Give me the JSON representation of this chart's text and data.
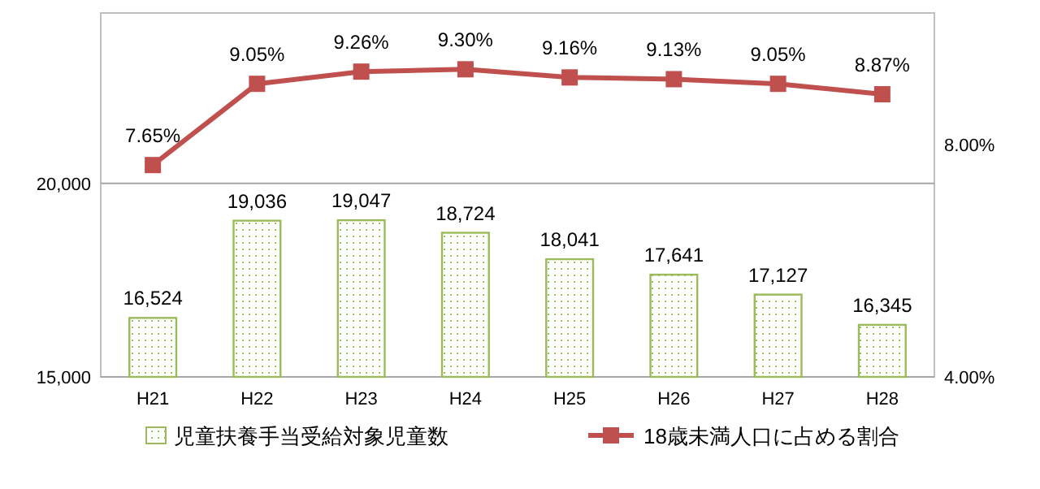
{
  "chart_data": {
    "type": "bar",
    "categories": [
      "H21",
      "H22",
      "H23",
      "H24",
      "H25",
      "H26",
      "H27",
      "H28"
    ],
    "series": [
      {
        "name": "児童扶養手当受給対象児童数",
        "color": "#9bbb59",
        "values": [
          16524,
          19036,
          19047,
          18724,
          18041,
          17641,
          17127,
          16345
        ],
        "value_labels": [
          "16,524",
          "19,036",
          "19,047",
          "18,724",
          "18,041",
          "17,641",
          "17,127",
          "16,345"
        ]
      },
      {
        "name": "18歳未満人口に占める割合",
        "type": "line",
        "axis": "y2",
        "color": "#c0504d",
        "marker": "square",
        "values": [
          7.65,
          9.05,
          9.26,
          9.3,
          9.16,
          9.13,
          9.05,
          8.87
        ],
        "value_labels": [
          "7.65%",
          "9.05%",
          "9.26%",
          "9.30%",
          "9.16%",
          "9.13%",
          "9.05%",
          "8.87%"
        ]
      }
    ],
    "ylim": [
      15000,
      24400
    ],
    "yticks": [
      {
        "value": 15000,
        "label": "15,000"
      },
      {
        "value": 20000,
        "label": "20,000"
      }
    ],
    "y2lim": [
      4,
      10.27
    ],
    "y2ticks": [
      {
        "value": 4,
        "label": "4.00%"
      },
      {
        "value": 8,
        "label": "8.00%"
      }
    ],
    "grid": "y",
    "legend": "bottom"
  }
}
